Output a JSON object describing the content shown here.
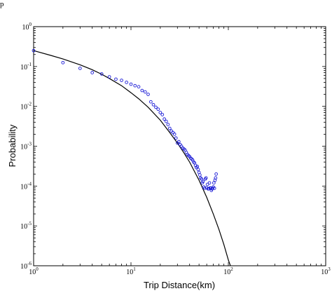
{
  "figure_corner_text": "p",
  "chart_data": {
    "type": "scatter",
    "xlabel": "Trip Distance(km)",
    "ylabel": "Probability",
    "xscale": "log",
    "yscale": "log",
    "xlim": [
      1,
      1000
    ],
    "ylim": [
      1e-06,
      1
    ],
    "x_ticks": [
      {
        "base": "10",
        "exp": "0"
      },
      {
        "base": "10",
        "exp": "1"
      },
      {
        "base": "10",
        "exp": "2"
      },
      {
        "base": "10",
        "exp": "3"
      }
    ],
    "y_ticks": [
      {
        "base": "10",
        "exp": "-6"
      },
      {
        "base": "10",
        "exp": "-5"
      },
      {
        "base": "10",
        "exp": "-4"
      },
      {
        "base": "10",
        "exp": "-3"
      },
      {
        "base": "10",
        "exp": "-2"
      },
      {
        "base": "10",
        "exp": "-1"
      },
      {
        "base": "10",
        "exp": "0"
      }
    ],
    "marker_color": "#1a1ad6",
    "fit_color": "#000000",
    "grid": false,
    "series": [
      {
        "kind": "points",
        "x": [
          1,
          2,
          3,
          4,
          5,
          6,
          7,
          8,
          9,
          10,
          11,
          12,
          13,
          14,
          15,
          16,
          17,
          18,
          19,
          20,
          21,
          22,
          23,
          24,
          25,
          26,
          27,
          28,
          29,
          30,
          31,
          32,
          33,
          34,
          35,
          36,
          37,
          38,
          39,
          40,
          41,
          42,
          43,
          44,
          45,
          46,
          47,
          48,
          49,
          50,
          51,
          52,
          53,
          54,
          55,
          56,
          57,
          58,
          59,
          60,
          61,
          62,
          63,
          64,
          65,
          66,
          67,
          68,
          69,
          70,
          71,
          72,
          73,
          74,
          75
        ],
        "y": [
          0.25,
          0.125,
          0.09,
          0.07,
          0.065,
          0.055,
          0.048,
          0.045,
          0.04,
          0.036,
          0.033,
          0.031,
          0.025,
          0.023,
          0.02,
          0.013,
          0.011,
          0.0095,
          0.0085,
          0.007,
          0.0062,
          0.0048,
          0.0042,
          0.0035,
          0.0028,
          0.0024,
          0.0022,
          0.002,
          0.0016,
          0.0012,
          0.0013,
          0.0011,
          0.001,
          0.0009,
          0.00085,
          0.0008,
          0.0007,
          0.00062,
          0.00058,
          0.00055,
          0.0005,
          0.00048,
          0.00045,
          0.0004,
          0.00038,
          0.00033,
          0.00029,
          0.00031,
          0.00026,
          0.00022,
          0.00019,
          0.00016,
          0.00015,
          0.00012,
          0.00013,
          9.5e-05,
          8.8e-05,
          0.00015,
          0.00016,
          9e-05,
          0.00011,
          8.5e-05,
          8.6e-05,
          0.00012,
          9e-05,
          8.8e-05,
          7.8e-05,
          8.5e-05,
          8.8e-05,
          9.5e-05,
          0.00012,
          8.8e-05,
          0.00014,
          0.00016,
          0.0002
        ]
      },
      {
        "kind": "fit",
        "x": [
          1,
          1.5,
          2,
          3,
          4,
          5,
          6,
          8,
          10,
          12,
          15,
          20,
          25,
          30,
          35,
          40,
          50,
          60,
          70,
          80,
          90,
          100,
          105
        ],
        "y": [
          0.25,
          0.19,
          0.155,
          0.11,
          0.083,
          0.064,
          0.05,
          0.033,
          0.022,
          0.0155,
          0.0095,
          0.0045,
          0.0022,
          0.0012,
          0.00068,
          0.0004,
          0.00014,
          5.2e-05,
          2e-05,
          8.2e-06,
          3.4e-06,
          1.4e-06,
          1e-06
        ]
      }
    ]
  }
}
